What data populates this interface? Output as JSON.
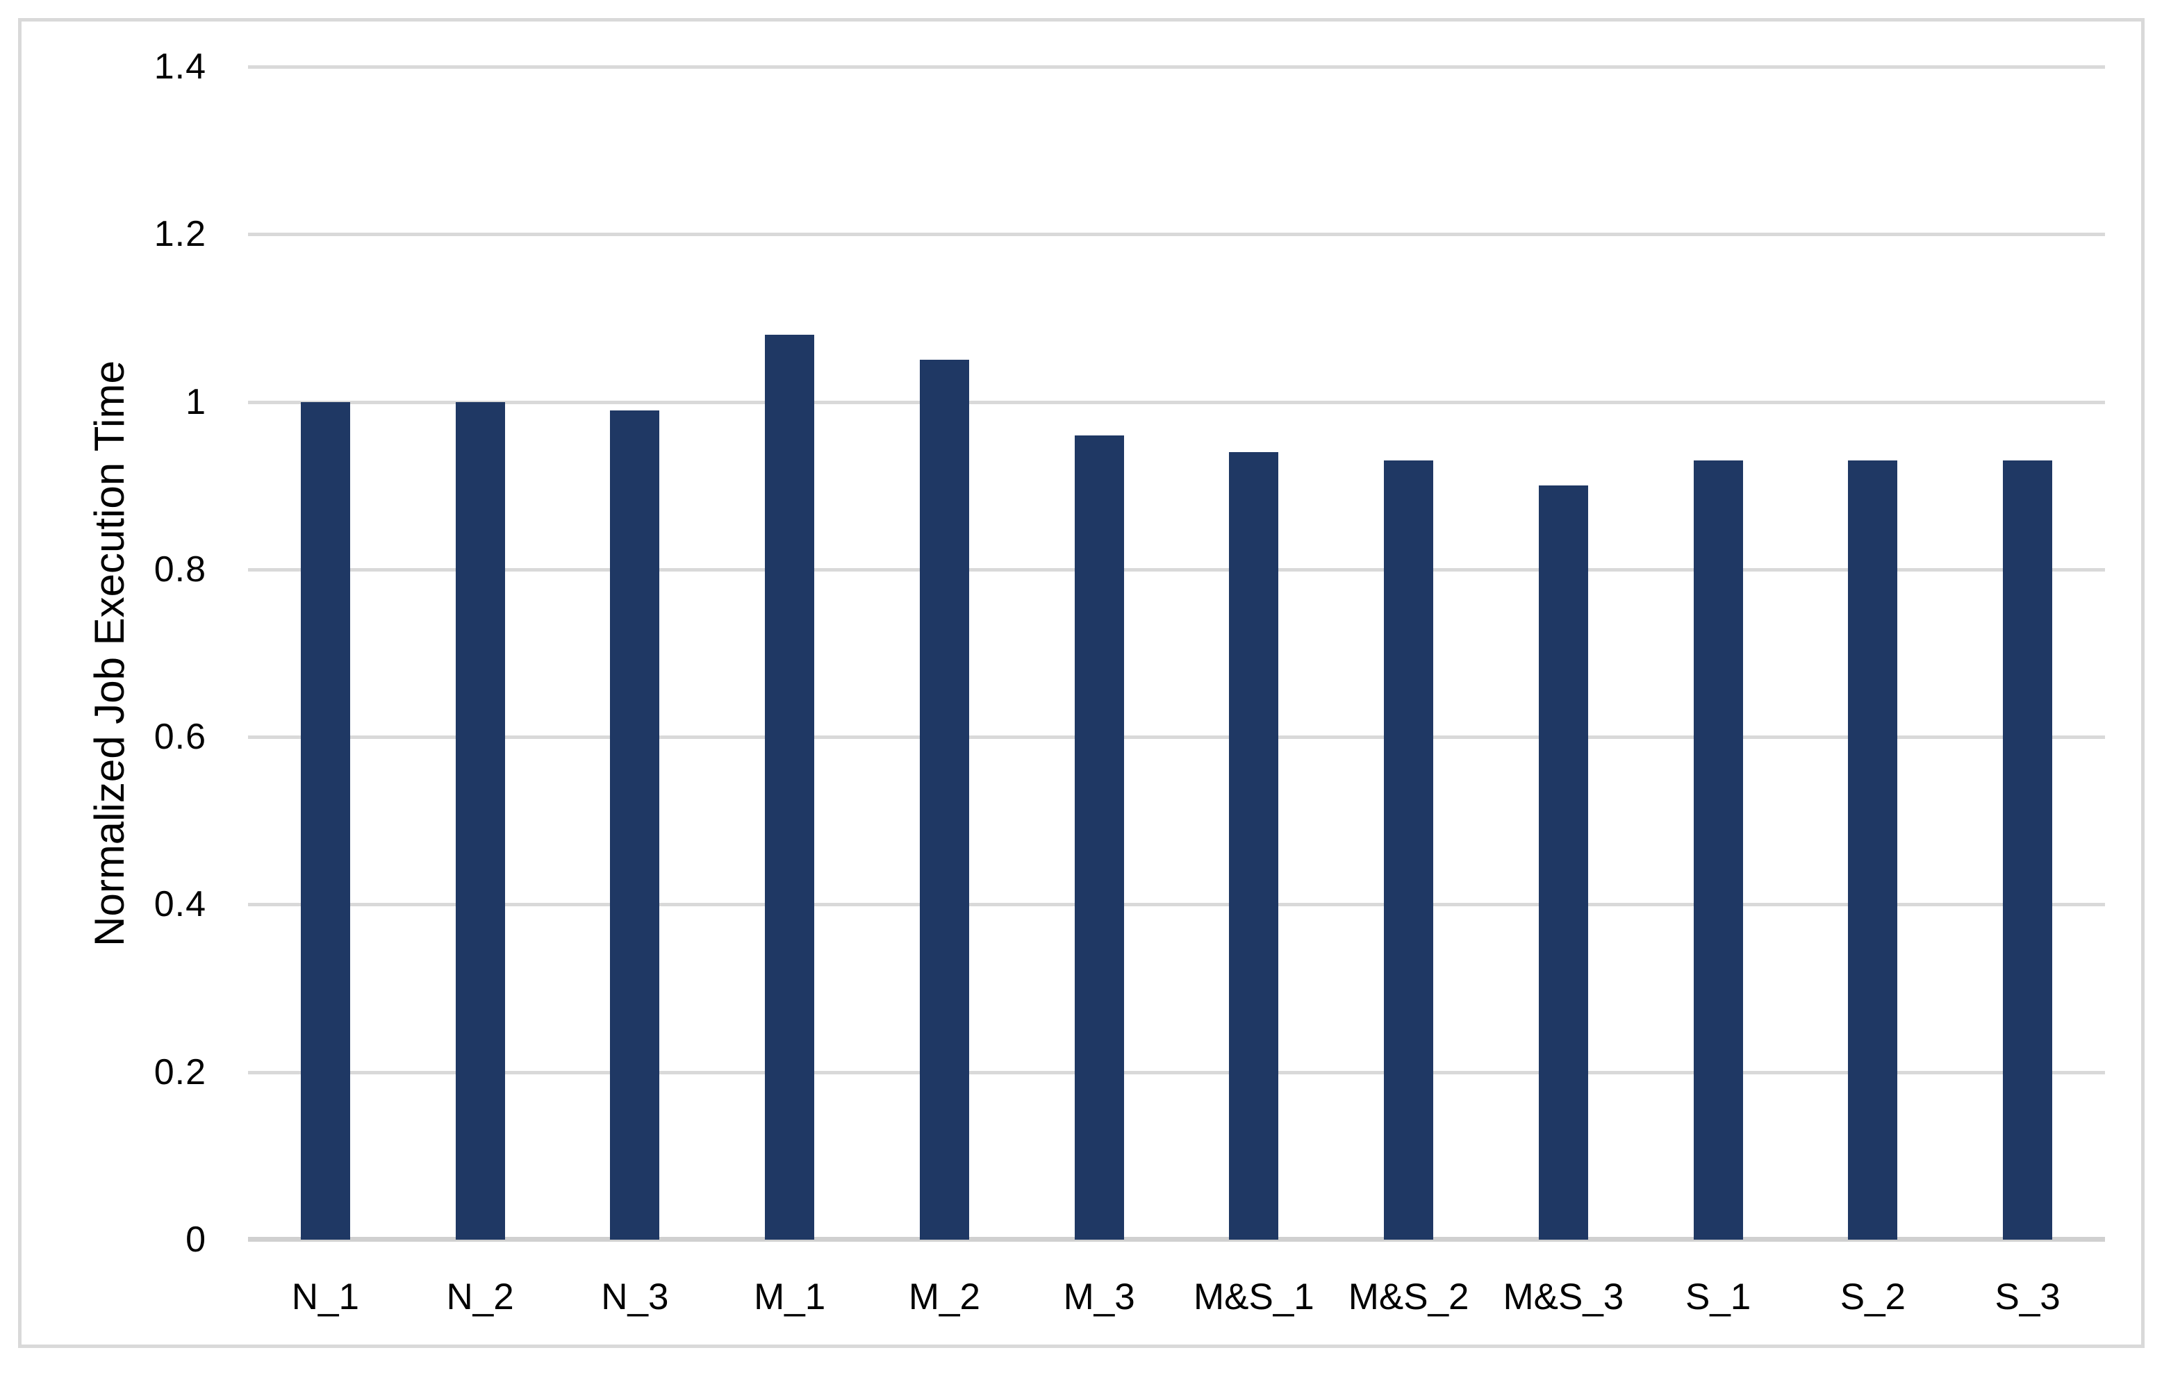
{
  "chart_data": {
    "type": "bar",
    "title": "",
    "xlabel": "",
    "ylabel": "Normalized Job Execution Time",
    "categories": [
      "N_1",
      "N_2",
      "N_3",
      "M_1",
      "M_2",
      "M_3",
      "M&S_1",
      "M&S_2",
      "M&S_3",
      "S_1",
      "S_2",
      "S_3"
    ],
    "values": [
      1.0,
      1.0,
      0.99,
      1.08,
      1.05,
      0.96,
      0.94,
      0.93,
      0.9,
      0.93,
      0.93,
      0.93
    ],
    "series_name": "Normalized Job Execution Time",
    "ylim": [
      0,
      1.4
    ],
    "ytick_interval": 0.2,
    "ytick_labels": [
      "0",
      "0.2",
      "0.4",
      "0.6",
      "0.8",
      "1",
      "1.2",
      "1.4"
    ],
    "grid": true,
    "legend": false,
    "legend_position": "none",
    "colors": {
      "bar_fill": "#1f3864",
      "gridline": "#d9d9d9",
      "axis_line": "#d0d0d0",
      "frame_border": "#d9d9d9",
      "label_text": "#000000",
      "background": "#ffffff"
    }
  }
}
